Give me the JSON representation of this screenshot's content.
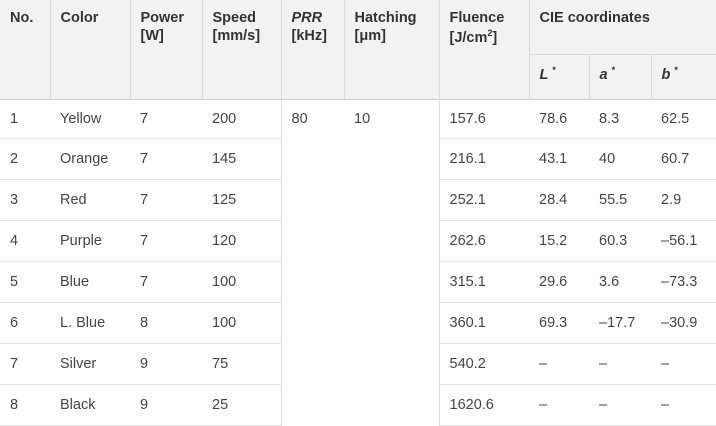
{
  "table": {
    "headers": {
      "no": "No.",
      "color": "Color",
      "power": "Power",
      "power_unit": "[W]",
      "speed": "Speed",
      "speed_unit": "[mm/s]",
      "prr": "PRR",
      "prr_unit": "[kHz]",
      "hatching": "Hatching",
      "hatching_unit": "[μm]",
      "fluence": "Fluence",
      "fluence_unit": "[J/cm",
      "fluence_sup": "2",
      "fluence_close": "]",
      "cie": "CIE coordinates",
      "L": "L",
      "a": "a",
      "b": "b",
      "star": "*"
    },
    "shared": {
      "prr": "80",
      "hatching": "10"
    },
    "rows": [
      {
        "no": "1",
        "color": "Yellow",
        "power": "7",
        "speed": "200",
        "fluence": "157.6",
        "L": "78.6",
        "a": "8.3",
        "b": "62.5"
      },
      {
        "no": "2",
        "color": "Orange",
        "power": "7",
        "speed": "145",
        "fluence": "216.1",
        "L": "43.1",
        "a": "40",
        "b": "60.7"
      },
      {
        "no": "3",
        "color": "Red",
        "power": "7",
        "speed": "125",
        "fluence": "252.1",
        "L": "28.4",
        "a": "55.5",
        "b": "2.9"
      },
      {
        "no": "4",
        "color": "Purple",
        "power": "7",
        "speed": "120",
        "fluence": "262.6",
        "L": "15.2",
        "a": "60.3",
        "b": "–56.1"
      },
      {
        "no": "5",
        "color": "Blue",
        "power": "7",
        "speed": "100",
        "fluence": "315.1",
        "L": "29.6",
        "a": "3.6",
        "b": "–73.3"
      },
      {
        "no": "6",
        "color": "L. Blue",
        "power": "8",
        "speed": "100",
        "fluence": "360.1",
        "L": "69.3",
        "a": "–17.7",
        "b": "–30.9"
      },
      {
        "no": "7",
        "color": "Silver",
        "power": "9",
        "speed": "75",
        "fluence": "540.2",
        "L": "–",
        "a": "–",
        "b": "–"
      },
      {
        "no": "8",
        "color": "Black",
        "power": "9",
        "speed": "25",
        "fluence": "1620.6",
        "L": "–",
        "a": "–",
        "b": "–"
      }
    ]
  }
}
